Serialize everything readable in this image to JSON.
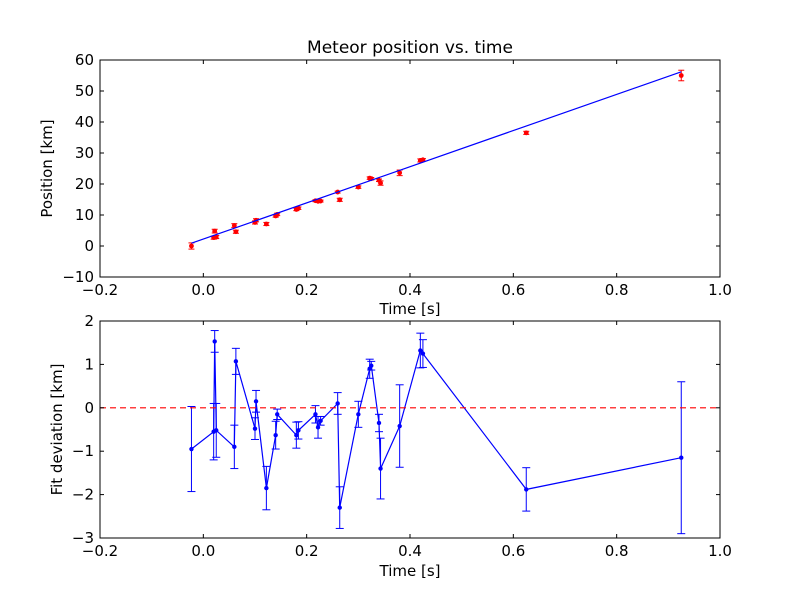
{
  "figure": {
    "background": "#ffffff"
  },
  "colors": {
    "points": "#ff0000",
    "line": "#0000ff",
    "zero_line": "#ff0000",
    "axes": "#000000"
  },
  "chart_data": [
    {
      "type": "scatter",
      "title": "Meteor position vs. time",
      "xlabel": "Time [s]",
      "ylabel": "Position [km]",
      "xlim": [
        -0.2,
        1.0
      ],
      "ylim": [
        -10,
        60
      ],
      "xticks": [
        -0.2,
        0.0,
        0.2,
        0.4,
        0.6,
        0.8,
        1.0
      ],
      "xtick_labels": [
        "−0.2",
        "0.0",
        "0.2",
        "0.4",
        "0.6",
        "0.8",
        "1.0"
      ],
      "yticks": [
        -10,
        0,
        10,
        20,
        30,
        40,
        50,
        60
      ],
      "ytick_labels": [
        "−10",
        "0",
        "10",
        "20",
        "30",
        "40",
        "50",
        "60"
      ],
      "grid": false,
      "series": [
        {
          "kind": "points_with_errorbars",
          "marker_color": "#ff0000",
          "x": [
            -0.023,
            0.02,
            0.022,
            0.025,
            0.06,
            0.063,
            0.1,
            0.102,
            0.122,
            0.14,
            0.143,
            0.18,
            0.184,
            0.217,
            0.222,
            0.227,
            0.26,
            0.264,
            0.3,
            0.322,
            0.325,
            0.34,
            0.343,
            0.38,
            0.42,
            0.425,
            0.625,
            0.925
          ],
          "y": [
            0.0,
            2.7,
            4.8,
            2.9,
            6.6,
            4.6,
            7.6,
            8.3,
            7.1,
            9.7,
            10.2,
            11.8,
            12.2,
            14.6,
            14.4,
            14.5,
            17.4,
            14.9,
            19.0,
            21.9,
            21.7,
            21.2,
            20.3,
            23.6,
            27.6,
            27.8,
            36.5,
            55.0
          ],
          "yerr": [
            1.0,
            0.5,
            0.6,
            0.5,
            0.6,
            0.5,
            0.5,
            0.5,
            0.5,
            0.4,
            0.4,
            0.4,
            0.4,
            0.3,
            0.3,
            0.3,
            0.3,
            0.5,
            0.4,
            0.4,
            0.4,
            0.4,
            0.7,
            0.9,
            0.5,
            0.4,
            0.5,
            1.7
          ]
        },
        {
          "kind": "fit_line",
          "line_color": "#0000ff",
          "x": [
            -0.023,
            0.925
          ],
          "y": [
            0.9,
            56.2
          ]
        }
      ]
    },
    {
      "type": "line",
      "title": "",
      "xlabel": "Time [s]",
      "ylabel": "Fit deviation [km]",
      "xlim": [
        -0.2,
        1.0
      ],
      "ylim": [
        -3,
        2
      ],
      "xticks": [
        -0.2,
        0.0,
        0.2,
        0.4,
        0.6,
        0.8,
        1.0
      ],
      "xtick_labels": [
        "−0.2",
        "0.0",
        "0.2",
        "0.4",
        "0.6",
        "0.8",
        "1.0"
      ],
      "yticks": [
        -3,
        -2,
        -1,
        0,
        1,
        2
      ],
      "ytick_labels": [
        "−3",
        "−2",
        "−1",
        "0",
        "1",
        "2"
      ],
      "grid": false,
      "series": [
        {
          "kind": "line_with_errorbars",
          "color": "#0000ff",
          "x": [
            -0.023,
            0.02,
            0.022,
            0.025,
            0.06,
            0.063,
            0.1,
            0.102,
            0.122,
            0.14,
            0.143,
            0.18,
            0.184,
            0.217,
            0.222,
            0.227,
            0.26,
            0.264,
            0.3,
            0.322,
            0.325,
            0.34,
            0.343,
            0.38,
            0.42,
            0.425,
            0.625,
            0.925
          ],
          "y": [
            -0.95,
            -0.55,
            1.53,
            -0.52,
            -0.9,
            1.07,
            -0.48,
            0.15,
            -1.85,
            -0.63,
            -0.15,
            -0.63,
            -0.52,
            -0.15,
            -0.45,
            -0.3,
            0.1,
            -2.3,
            -0.15,
            0.9,
            0.97,
            -0.35,
            -1.4,
            -0.42,
            1.32,
            1.25,
            -1.88,
            -1.15
          ],
          "yerr": [
            0.98,
            0.65,
            0.25,
            0.62,
            0.5,
            0.3,
            0.25,
            0.25,
            0.5,
            0.32,
            0.12,
            0.3,
            0.2,
            0.2,
            0.25,
            0.1,
            0.25,
            0.48,
            0.3,
            0.22,
            0.1,
            0.2,
            0.7,
            0.95,
            0.4,
            0.32,
            0.5,
            1.75
          ]
        },
        {
          "kind": "reference_line",
          "color": "#ff0000",
          "style": "dashed",
          "y": 0
        }
      ]
    }
  ]
}
